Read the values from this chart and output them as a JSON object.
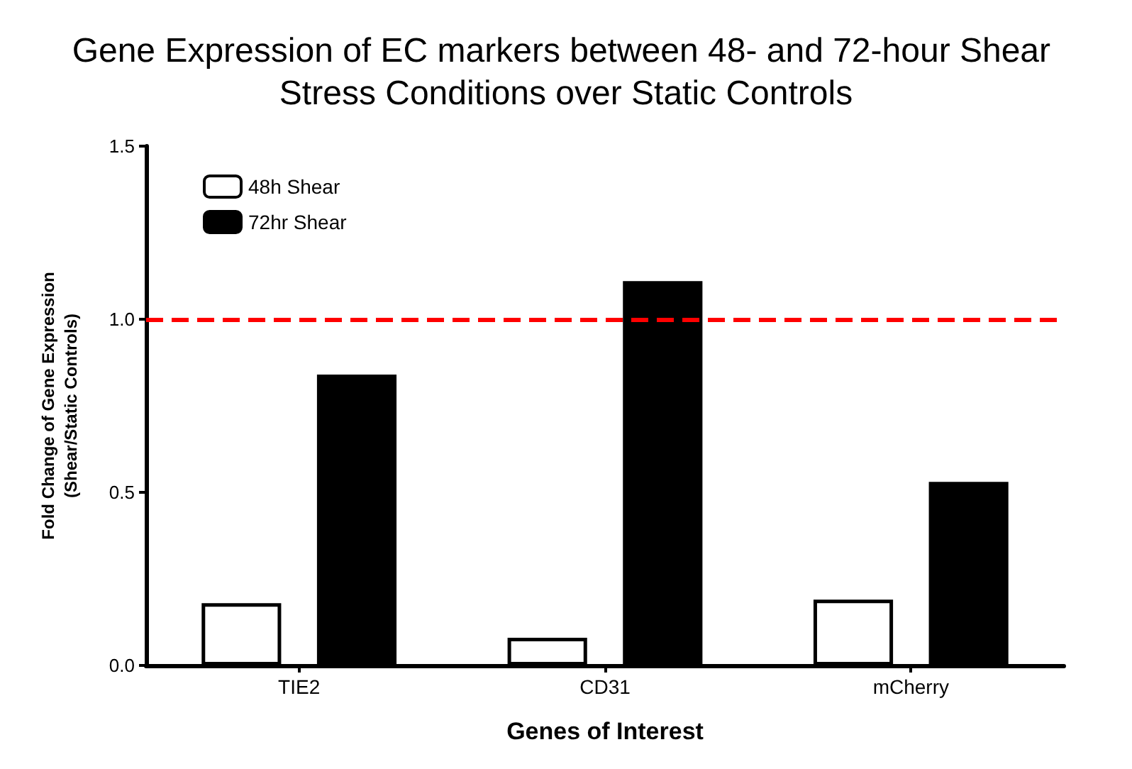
{
  "chart_data": {
    "type": "bar",
    "title": "Gene Expression of EC markers between 48- and 72-hour Shear Stress Conditions over Static Controls",
    "xlabel": "Genes of Interest",
    "ylabel": "Fold Change of Gene Expression\n(Shear/Static Controls)",
    "categories": [
      "TIE2",
      "CD31",
      "mCherry"
    ],
    "series": [
      {
        "name": "48h Shear",
        "color": "#ffffff",
        "values": [
          0.18,
          0.08,
          0.19
        ]
      },
      {
        "name": "72hr Shear",
        "color": "#000000",
        "values": [
          0.84,
          1.11,
          0.53
        ]
      }
    ],
    "ylim": [
      0,
      1.5
    ],
    "yticks": [
      {
        "value": 0,
        "label": "0.0"
      },
      {
        "value": 0.5,
        "label": "0.5"
      },
      {
        "value": 1,
        "label": "1.0"
      },
      {
        "value": 1.5,
        "label": "1.5"
      }
    ],
    "ref_lines": [
      {
        "axis": "y",
        "value": 1,
        "label": null,
        "color": "#ff0000",
        "line_style": "dashed"
      }
    ],
    "grid": false,
    "legend": "top left"
  }
}
